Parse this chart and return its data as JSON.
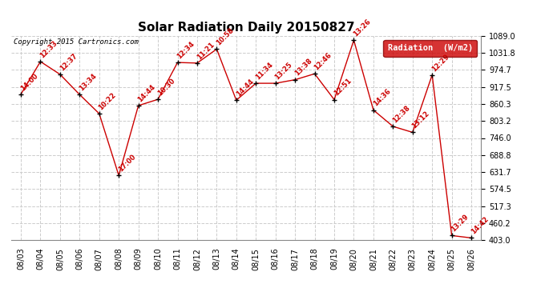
{
  "title": "Solar Radiation Daily 20150827",
  "copyright": "Copyright 2015 Cartronics.com",
  "ylabel": "Radiation (W/m2)",
  "background_color": "#ffffff",
  "grid_color": "#cccccc",
  "line_color": "#cc0000",
  "marker_color": "#000000",
  "legend_bg": "#cc0000",
  "legend_text": "Radiation  (W/m2)",
  "ylim": [
    403.0,
    1089.0
  ],
  "yticks": [
    403.0,
    460.2,
    517.3,
    574.5,
    631.7,
    688.8,
    746.0,
    803.2,
    860.3,
    917.5,
    974.7,
    1031.8,
    1089.0
  ],
  "dates": [
    "08/03",
    "08/04",
    "08/05",
    "08/06",
    "08/07",
    "08/08",
    "08/09",
    "08/10",
    "08/11",
    "08/12",
    "08/13",
    "08/14",
    "08/15",
    "08/16",
    "08/17",
    "08/18",
    "08/19",
    "08/20",
    "08/21",
    "08/22",
    "08/23",
    "08/24",
    "08/25",
    "08/26"
  ],
  "values": [
    893,
    1003,
    960,
    892,
    828,
    620,
    855,
    876,
    1000,
    998,
    1045,
    873,
    930,
    930,
    942,
    962,
    875,
    1075,
    840,
    785,
    765,
    958,
    418,
    410
  ],
  "times": [
    "14:00",
    "12:33",
    "12:37",
    "13:34",
    "10:22",
    "17:00",
    "14:44",
    "10:30",
    "12:34",
    "11:21",
    "10:58",
    "14:44",
    "11:34",
    "13:25",
    "13:38",
    "12:46",
    "12:51",
    "13:26",
    "14:36",
    "12:38",
    "13:12",
    "12:29",
    "13:29",
    "14:42"
  ],
  "highlight_index": 17,
  "title_fontsize": 11,
  "copyright_fontsize": 6.5,
  "label_fontsize": 6.0,
  "tick_fontsize": 7.0
}
